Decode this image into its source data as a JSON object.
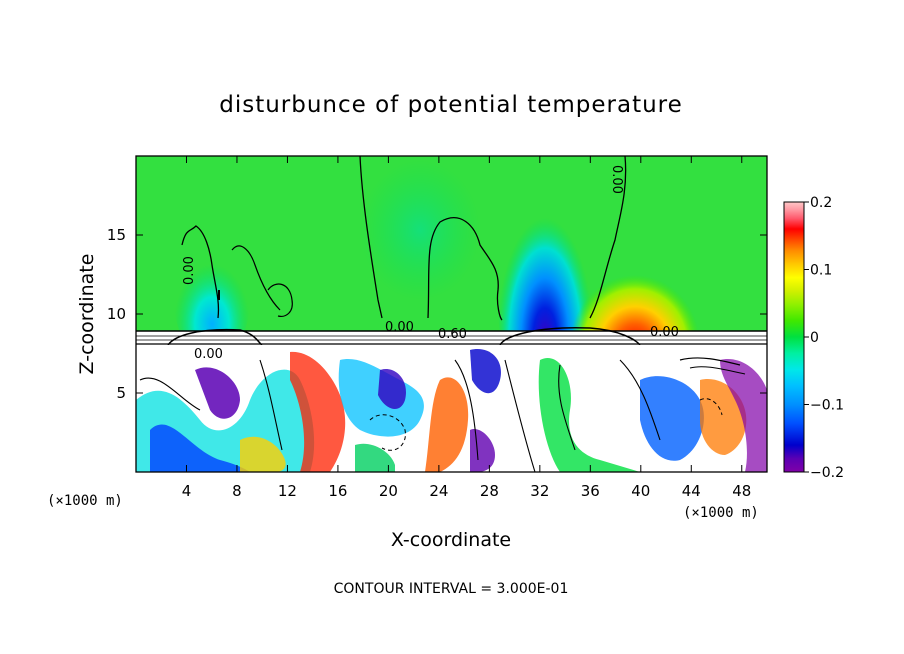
{
  "chart_data": {
    "type": "heatmap",
    "title": "disturbunce of potential temperature",
    "xlabel": "X-coordinate",
    "ylabel": "Z-coordinate",
    "x_unit_left": "(×1000 m)",
    "x_unit_right": "(×1000 m)",
    "footnote": "CONTOUR INTERVAL = 3.000E-01",
    "xlim": [
      0,
      50
    ],
    "ylim": [
      0,
      20
    ],
    "x_ticks": [
      4,
      8,
      12,
      16,
      20,
      24,
      28,
      32,
      36,
      40,
      44,
      48
    ],
    "y_ticks": [
      5,
      10,
      15
    ],
    "colorbar": {
      "min": -0.2,
      "max": 0.2,
      "tick_values": [
        0.2,
        0.1,
        0,
        -0.1,
        -0.2
      ],
      "tick_labels": [
        "0.2",
        "0.1",
        "0",
        "−0.1",
        "−0.2"
      ],
      "colors": [
        "#8000a8",
        "#5a00b4",
        "#0000cc",
        "#0050ff",
        "#0090ff",
        "#00c0ff",
        "#00e8e8",
        "#00f0a0",
        "#00e040",
        "#40e800",
        "#90f000",
        "#d0f000",
        "#ffff00",
        "#ffc800",
        "#ff8c00",
        "#ff4800",
        "#ff0000",
        "#ff5a6e",
        "#ff96a0",
        "#ffc8c8"
      ]
    },
    "contour_labels": [
      "0.00",
      "0.00",
      "0.60",
      "0.00",
      "0.00",
      "0.00"
    ],
    "upper_layer": {
      "z_range": [
        9,
        20
      ],
      "background_value": 0,
      "features": [
        {
          "x": 6,
          "z": 12,
          "value": -0.08
        },
        {
          "x": 32,
          "z": 11,
          "value": -0.19
        },
        {
          "x": 40,
          "z": 10,
          "value": 0.14
        }
      ]
    },
    "lower_layer": {
      "z_range": [
        0,
        8
      ],
      "description_value_range": [
        -0.2,
        0.2
      ]
    }
  }
}
